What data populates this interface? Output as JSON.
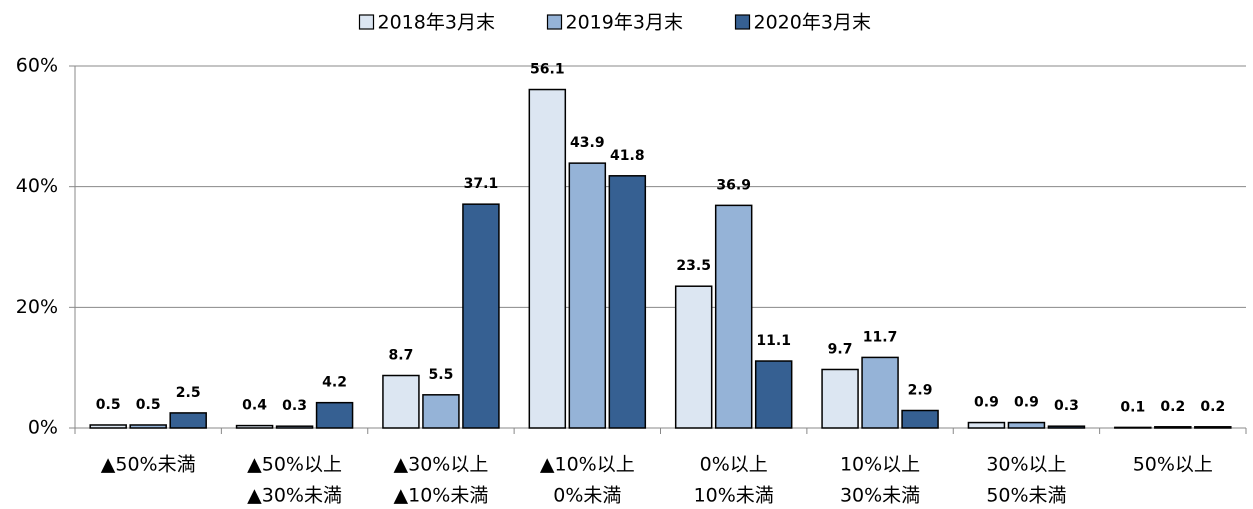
{
  "chart_data": {
    "type": "bar",
    "categories": [
      [
        "▲50%未満"
      ],
      [
        "▲50%以上",
        "▲30%未満"
      ],
      [
        "▲30%以上",
        "▲10%未満"
      ],
      [
        "▲10%以上",
        "0%未満"
      ],
      [
        "0%以上",
        "10%未満"
      ],
      [
        "10%以上",
        "30%未満"
      ],
      [
        "30%以上",
        "50%未満"
      ],
      [
        "50%以上"
      ]
    ],
    "series": [
      {
        "name": "2018年3月末",
        "color": "#dce6f2",
        "values": [
          0.5,
          0.4,
          8.7,
          56.1,
          23.5,
          9.7,
          0.9,
          0.1
        ]
      },
      {
        "name": "2019年3月末",
        "color": "#95b3d7",
        "values": [
          0.5,
          0.3,
          5.5,
          43.9,
          36.9,
          11.7,
          0.9,
          0.2
        ]
      },
      {
        "name": "2020年3月末",
        "color": "#366092",
        "values": [
          2.5,
          4.2,
          37.1,
          41.8,
          11.1,
          2.9,
          0.3,
          0.2
        ]
      }
    ],
    "ylim": [
      0,
      60
    ],
    "yticks": [
      {
        "value": 0,
        "label": "0%"
      },
      {
        "value": 20,
        "label": "20%"
      },
      {
        "value": 40,
        "label": "40%"
      },
      {
        "value": 60,
        "label": "60%"
      }
    ],
    "grid": true,
    "legend": "top"
  }
}
